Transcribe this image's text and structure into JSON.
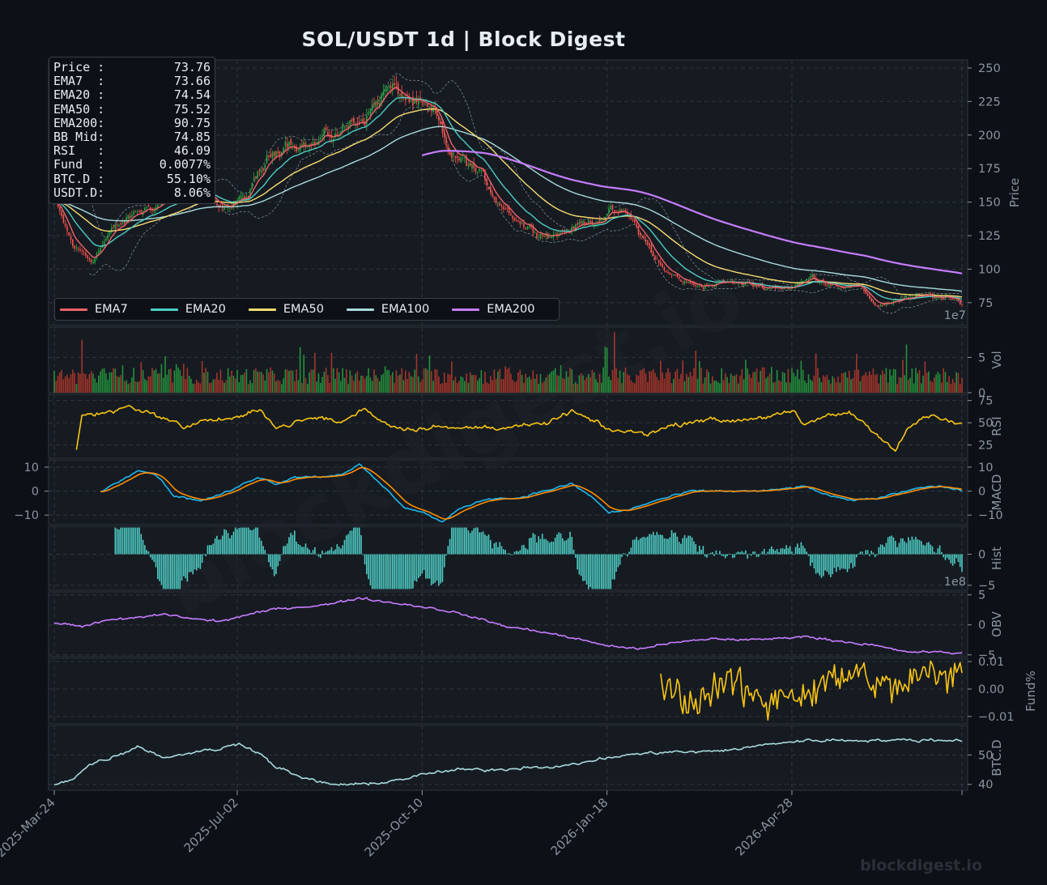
{
  "chart_data": {
    "type": "line",
    "title": "SOL/USDT  1d  |  Block Digest",
    "x_axis": {
      "tick_labels": [
        "2025-Mar-24",
        "2025-Jul-02",
        "2025-Oct-10",
        "2026-Jan-18",
        "2026-Apr-28"
      ],
      "start_date": "2025-03-24",
      "end_date": "2026-07-27"
    },
    "info_box": [
      {
        "label": "Price :",
        "value": "73.76"
      },
      {
        "label": "EMA7  :",
        "value": "73.66"
      },
      {
        "label": "EMA20 :",
        "value": "74.54"
      },
      {
        "label": "EMA50 :",
        "value": "75.52"
      },
      {
        "label": "EMA200:",
        "value": "90.75"
      },
      {
        "label": "BB Mid:",
        "value": "74.85"
      },
      {
        "label": "RSI   :",
        "value": "46.09"
      },
      {
        "label": "Fund  :",
        "value": "0.0077%"
      },
      {
        "label": "BTC.D :",
        "value": "55.10%"
      },
      {
        "label": "USDT.D:",
        "value": "8.06%"
      }
    ],
    "legend": [
      {
        "name": "EMA7",
        "color": "#f0626b"
      },
      {
        "name": "EMA20",
        "color": "#4ecdc4"
      },
      {
        "name": "EMA50",
        "color": "#f7dc6f"
      },
      {
        "name": "EMA100",
        "color": "#a8dadc"
      },
      {
        "name": "EMA200",
        "color": "#c77dff"
      }
    ],
    "panels": [
      {
        "id": "price",
        "ylabel": "Price",
        "ylim": [
          58,
          256
        ],
        "ticks": [
          "250",
          "225",
          "200",
          "175",
          "150",
          "125",
          "100",
          "75"
        ],
        "tick_values": [
          250,
          225,
          200,
          175,
          150,
          125,
          100,
          75
        ]
      },
      {
        "id": "volume",
        "ylabel": "Vol",
        "ylim": [
          0,
          9.3
        ],
        "ticks": [
          "5",
          "0"
        ],
        "tick_values": [
          5,
          0
        ],
        "offset_text": "1e7"
      },
      {
        "id": "rsi",
        "ylabel": "RSI",
        "ylim": [
          10,
          82
        ],
        "ticks": [
          "75",
          "50",
          "25"
        ],
        "tick_values": [
          75,
          50,
          25
        ]
      },
      {
        "id": "macd",
        "ylabel": "MACD",
        "ylim": [
          -14,
          13
        ],
        "ticks": [
          "10",
          "0",
          "−10"
        ],
        "tick_values": [
          10,
          0,
          -10
        ]
      },
      {
        "id": "hist",
        "ylabel": "Hist",
        "ylim": [
          -5.8,
          4.5
        ],
        "ticks": [
          "0",
          "−5"
        ],
        "tick_values": [
          0,
          -5
        ]
      },
      {
        "id": "obv",
        "ylabel": "OBV",
        "ylim": [
          -5.3,
          5.5
        ],
        "ticks": [
          "5",
          "0",
          "−5"
        ],
        "tick_values": [
          5,
          0,
          -5
        ],
        "offset_text": "1e8"
      },
      {
        "id": "fund",
        "ylabel": "Fund%",
        "ylim": [
          -0.0127,
          0.0112
        ],
        "ticks": [
          "0.01",
          "0.00",
          "−0.01"
        ],
        "tick_values": [
          0.01,
          0,
          -0.01
        ]
      },
      {
        "id": "btcd",
        "ylabel": "BTC.D",
        "ylim": [
          38,
          60
        ],
        "ticks": [
          "50",
          "40"
        ],
        "tick_values": [
          50,
          40
        ]
      }
    ],
    "key_points": {
      "price": [
        [
          0,
          150
        ],
        [
          10,
          117
        ],
        [
          20,
          107
        ],
        [
          30,
          127
        ],
        [
          45,
          142
        ],
        [
          60,
          152
        ],
        [
          75,
          160
        ],
        [
          85,
          150
        ],
        [
          95,
          147
        ],
        [
          105,
          155
        ],
        [
          115,
          180
        ],
        [
          125,
          198
        ],
        [
          140,
          193
        ],
        [
          155,
          203
        ],
        [
          170,
          218
        ],
        [
          180,
          235
        ],
        [
          190,
          228
        ],
        [
          200,
          218
        ],
        [
          206,
          212
        ],
        [
          215,
          183
        ],
        [
          225,
          178
        ],
        [
          240,
          152
        ],
        [
          255,
          132
        ],
        [
          270,
          126
        ],
        [
          285,
          133
        ],
        [
          300,
          142
        ],
        [
          310,
          140
        ],
        [
          320,
          120
        ],
        [
          330,
          98
        ],
        [
          345,
          88
        ],
        [
          365,
          90
        ],
        [
          385,
          87
        ],
        [
          400,
          87
        ],
        [
          410,
          94
        ],
        [
          420,
          90
        ],
        [
          435,
          86
        ],
        [
          445,
          73
        ],
        [
          455,
          77
        ],
        [
          465,
          78
        ],
        [
          475,
          80
        ],
        [
          485,
          77
        ],
        [
          491,
          74
        ]
      ],
      "rsi": [
        [
          12,
          20
        ],
        [
          15,
          58
        ],
        [
          30,
          62
        ],
        [
          40,
          69
        ],
        [
          50,
          62
        ],
        [
          60,
          55
        ],
        [
          70,
          45
        ],
        [
          80,
          52
        ],
        [
          90,
          54
        ],
        [
          100,
          55
        ],
        [
          112,
          66
        ],
        [
          120,
          44
        ],
        [
          135,
          53
        ],
        [
          145,
          56
        ],
        [
          155,
          50
        ],
        [
          168,
          66
        ],
        [
          180,
          48
        ],
        [
          195,
          42
        ],
        [
          205,
          47
        ],
        [
          215,
          43
        ],
        [
          230,
          45
        ],
        [
          245,
          45
        ],
        [
          265,
          48
        ],
        [
          280,
          63
        ],
        [
          290,
          53
        ],
        [
          300,
          42
        ],
        [
          310,
          40
        ],
        [
          320,
          38
        ],
        [
          335,
          47
        ],
        [
          350,
          54
        ],
        [
          365,
          52
        ],
        [
          385,
          57
        ],
        [
          400,
          62
        ],
        [
          405,
          47
        ],
        [
          415,
          56
        ],
        [
          430,
          62
        ],
        [
          440,
          47
        ],
        [
          450,
          28
        ],
        [
          455,
          18
        ],
        [
          462,
          44
        ],
        [
          472,
          58
        ],
        [
          485,
          51
        ],
        [
          491,
          48
        ]
      ],
      "macd": [
        [
          25,
          0
        ],
        [
          35,
          4
        ],
        [
          45,
          9
        ],
        [
          55,
          7
        ],
        [
          65,
          -2
        ],
        [
          80,
          -4
        ],
        [
          95,
          0
        ],
        [
          110,
          6
        ],
        [
          120,
          3
        ],
        [
          130,
          6
        ],
        [
          145,
          6
        ],
        [
          155,
          7
        ],
        [
          165,
          11
        ],
        [
          175,
          4
        ],
        [
          190,
          -7
        ],
        [
          200,
          -9
        ],
        [
          210,
          -13
        ],
        [
          220,
          -7
        ],
        [
          235,
          -3
        ],
        [
          250,
          -3
        ],
        [
          265,
          0
        ],
        [
          280,
          3
        ],
        [
          290,
          -2
        ],
        [
          300,
          -9
        ],
        [
          310,
          -8
        ],
        [
          325,
          -4
        ],
        [
          345,
          0
        ],
        [
          365,
          0
        ],
        [
          385,
          0
        ],
        [
          405,
          2
        ],
        [
          420,
          -2
        ],
        [
          430,
          -4
        ],
        [
          445,
          -3
        ],
        [
          460,
          0
        ],
        [
          470,
          2
        ],
        [
          480,
          2
        ],
        [
          491,
          0
        ]
      ],
      "obv": [
        [
          0,
          0.3
        ],
        [
          15,
          -0.2
        ],
        [
          30,
          0.8
        ],
        [
          45,
          1.2
        ],
        [
          60,
          1.8
        ],
        [
          75,
          1.0
        ],
        [
          90,
          0.6
        ],
        [
          105,
          1.7
        ],
        [
          120,
          2.7
        ],
        [
          135,
          3.0
        ],
        [
          150,
          3.5
        ],
        [
          165,
          4.5
        ],
        [
          180,
          3.8
        ],
        [
          200,
          3.0
        ],
        [
          215,
          2.2
        ],
        [
          230,
          1.0
        ],
        [
          245,
          -0.3
        ],
        [
          265,
          -1.2
        ],
        [
          285,
          -2.5
        ],
        [
          300,
          -3.5
        ],
        [
          315,
          -4.0
        ],
        [
          335,
          -3.0
        ],
        [
          355,
          -2.3
        ],
        [
          375,
          -2.5
        ],
        [
          390,
          -2.3
        ],
        [
          405,
          -1.9
        ],
        [
          420,
          -2.5
        ],
        [
          445,
          -3.5
        ],
        [
          460,
          -4.5
        ],
        [
          475,
          -4.5
        ],
        [
          485,
          -4.7
        ],
        [
          491,
          -4.7
        ]
      ],
      "fund": [
        [
          328,
          0.002
        ],
        [
          338,
          -0.002
        ],
        [
          346,
          -0.006
        ],
        [
          355,
          0.0
        ],
        [
          365,
          0.003
        ],
        [
          375,
          -0.001
        ],
        [
          385,
          -0.006
        ],
        [
          395,
          0.0
        ],
        [
          405,
          -0.003
        ],
        [
          415,
          0.002
        ],
        [
          425,
          0.004
        ],
        [
          435,
          0.006
        ],
        [
          445,
          0.002
        ],
        [
          455,
          0.0
        ],
        [
          465,
          0.004
        ],
        [
          475,
          0.006
        ],
        [
          485,
          0.003
        ],
        [
          491,
          0.008
        ]
      ],
      "btcd": [
        [
          0,
          40
        ],
        [
          10,
          42
        ],
        [
          20,
          47
        ],
        [
          35,
          50
        ],
        [
          45,
          53
        ],
        [
          60,
          49
        ],
        [
          75,
          51
        ],
        [
          90,
          52
        ],
        [
          100,
          54
        ],
        [
          110,
          51
        ],
        [
          120,
          46
        ],
        [
          135,
          42
        ],
        [
          150,
          40
        ],
        [
          170,
          40
        ],
        [
          190,
          42
        ],
        [
          205,
          44
        ],
        [
          220,
          45
        ],
        [
          240,
          45
        ],
        [
          260,
          46
        ],
        [
          275,
          46
        ],
        [
          290,
          48
        ],
        [
          310,
          50
        ],
        [
          330,
          51
        ],
        [
          350,
          51
        ],
        [
          370,
          52
        ],
        [
          390,
          54
        ],
        [
          410,
          55
        ],
        [
          430,
          55
        ],
        [
          450,
          55
        ],
        [
          470,
          55
        ],
        [
          491,
          55
        ]
      ]
    }
  },
  "watermarks": {
    "diagonal": "blockdigest.io",
    "footer": "blockdigest.io"
  },
  "colors": {
    "background": "#0d1117",
    "panel": "#161b22",
    "bull": "#26a641",
    "bear": "#f85149",
    "rsi": "#f9c513",
    "macd": "#1fb8f0",
    "signal": "#ff8c00",
    "hist": "#4ecdc4",
    "obv": "#c77dff",
    "fund": "#f9c513",
    "btcd": "#a8dadc"
  }
}
